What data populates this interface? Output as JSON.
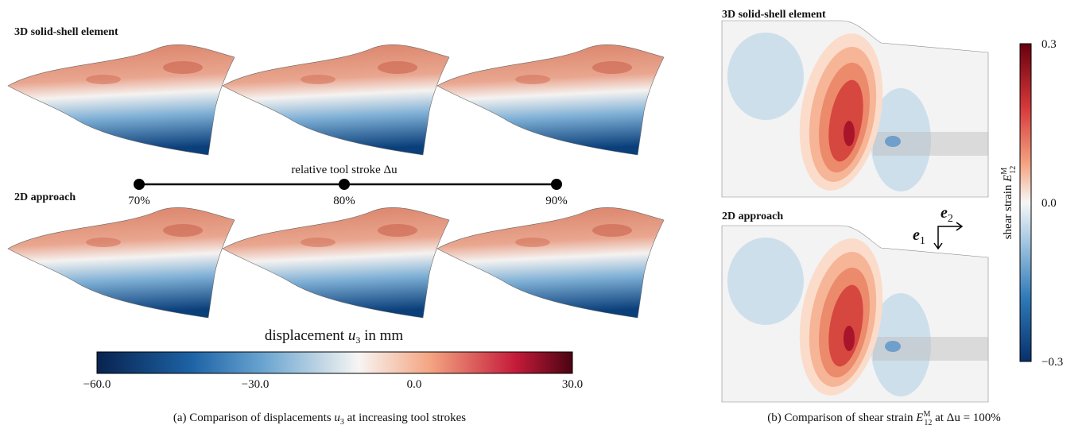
{
  "panel_a": {
    "row_labels": [
      "3D solid-shell element",
      "2D approach"
    ],
    "stroke_label": "relative tool stroke Δu",
    "strokes": [
      "70%",
      "80%",
      "90%"
    ],
    "colorbar_label": {
      "pre": "displacement ",
      "var": "u",
      "sub": "3",
      "post": " in mm"
    },
    "colorbar_ticks": [
      "−60.0",
      "−30.0",
      "0.0",
      "30.0"
    ],
    "caption": {
      "pre": "(a)  Comparison of displacements ",
      "var": "u",
      "sub": "3",
      "post": " at increasing tool strokes"
    }
  },
  "panel_b": {
    "row_labels": [
      "3D solid-shell element",
      "2D approach"
    ],
    "axes": {
      "e2": {
        "var": "e",
        "sub": "2"
      },
      "e1": {
        "var": "e",
        "sub": "1"
      }
    },
    "colorbar_ticks": [
      "0.3",
      "0.0",
      "−0.3"
    ],
    "colorbar_label": {
      "pre": "shear strain ",
      "var": "E",
      "sup": "M",
      "sub": "12"
    },
    "caption": {
      "pre": "(b)  Comparison of shear strain ",
      "var": "E",
      "sup": "M",
      "sub": "12",
      "post": " at Δu = 100%"
    }
  }
}
